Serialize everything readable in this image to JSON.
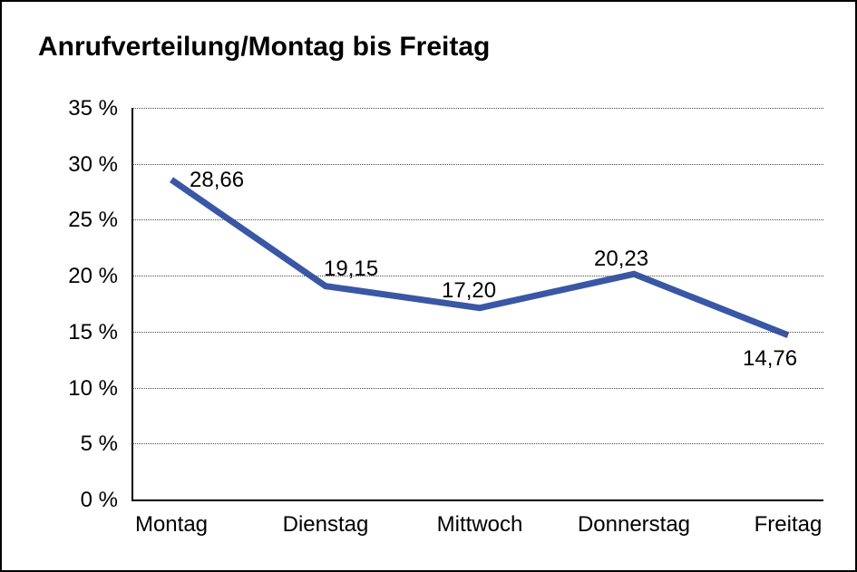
{
  "window": {
    "background_color": "#ffffff",
    "border_color": "#000000"
  },
  "chart_data": {
    "type": "line",
    "title": "Anrufverteilung/Montag bis Freitag",
    "categories": [
      "Montag",
      "Dienstag",
      "Mittwoch",
      "Donnerstag",
      "Freitag"
    ],
    "series": [
      {
        "name": "Anrufverteilung",
        "values": [
          28.66,
          19.15,
          17.2,
          20.23,
          14.76
        ]
      }
    ],
    "point_labels": [
      "28,66",
      "19,15",
      "17,20",
      "20,23",
      "14,76"
    ],
    "y_tick_labels": [
      "0 %",
      "5 %",
      "10 %",
      "15 %",
      "20 %",
      "25 %",
      "30 %",
      "35 %"
    ],
    "xlabel": "",
    "ylabel": "",
    "ylim": [
      0,
      35
    ],
    "y_step": 5,
    "grid": "horizontal-dotted",
    "legend": "none",
    "line_color": "#3A57A6",
    "line_width": 7,
    "axis_color": "#000000",
    "gridline_color": "#4a4a4a",
    "text_color": "#000000"
  }
}
